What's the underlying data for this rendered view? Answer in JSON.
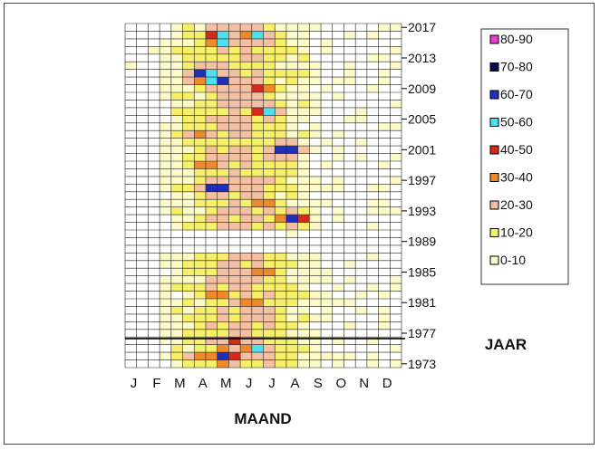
{
  "chart_data": {
    "type": "heatmap",
    "xlabel": "MAAND",
    "ylabel": "JAAR",
    "months": [
      "J",
      "F",
      "M",
      "A",
      "M",
      "J",
      "J",
      "A",
      "S",
      "O",
      "N",
      "D"
    ],
    "year_ticks": [
      "2017",
      "2013",
      "2009",
      "2005",
      "2001",
      "1997",
      "1993",
      "1989",
      "1985",
      "1981",
      "1977",
      "1973"
    ],
    "year_range": [
      1973,
      2017
    ],
    "legend": [
      {
        "label": "80-90",
        "color": "#e83fd0"
      },
      {
        "label": "70-80",
        "color": "#0b0b4a"
      },
      {
        "label": "60-70",
        "color": "#1f2fb8"
      },
      {
        "label": "50-60",
        "color": "#4fe0f0"
      },
      {
        "label": "40-50",
        "color": "#d42a1c"
      },
      {
        "label": "30-40",
        "color": "#ee8a2c"
      },
      {
        "label": "20-30",
        "color": "#f3c0a4"
      },
      {
        "label": "10-20",
        "color": "#f5ef6a"
      },
      {
        "label": "0-10",
        "color": "#fbfac8"
      }
    ],
    "grid": true,
    "legend_position": "right",
    "hotspots": [
      {
        "year": 2016,
        "month": 4.1,
        "value": 60
      },
      {
        "year": 2015,
        "month": 4.2,
        "value": 55
      },
      {
        "year": 2016,
        "month": 5.7,
        "value": 55
      },
      {
        "year": 2011,
        "month": 3.4,
        "value": 70
      },
      {
        "year": 2010,
        "month": 4.1,
        "value": 65
      },
      {
        "year": 2009,
        "month": 5.9,
        "value": 45
      },
      {
        "year": 2010,
        "month": 3.3,
        "value": 40
      },
      {
        "year": 2006,
        "month": 6.1,
        "value": 55
      },
      {
        "year": 2001,
        "month": 7.0,
        "value": 70
      },
      {
        "year": 1996,
        "month": 4.0,
        "value": 70
      },
      {
        "year": 1999,
        "month": 3.5,
        "value": 45
      },
      {
        "year": 1994,
        "month": 6.0,
        "value": 40
      },
      {
        "year": 1992,
        "month": 7.3,
        "value": 65
      },
      {
        "year": 2003,
        "month": 3.3,
        "value": 40
      },
      {
        "year": 1985,
        "month": 6.0,
        "value": 40
      },
      {
        "year": 1982,
        "month": 4.0,
        "value": 40
      },
      {
        "year": 1981,
        "month": 5.6,
        "value": 40
      },
      {
        "year": 1976,
        "month": 4.7,
        "value": 45
      },
      {
        "year": 1975,
        "month": 5.7,
        "value": 55
      },
      {
        "year": 1974,
        "month": 4.3,
        "value": 70
      },
      {
        "year": 1974,
        "month": 3.3,
        "value": 40
      }
    ]
  }
}
